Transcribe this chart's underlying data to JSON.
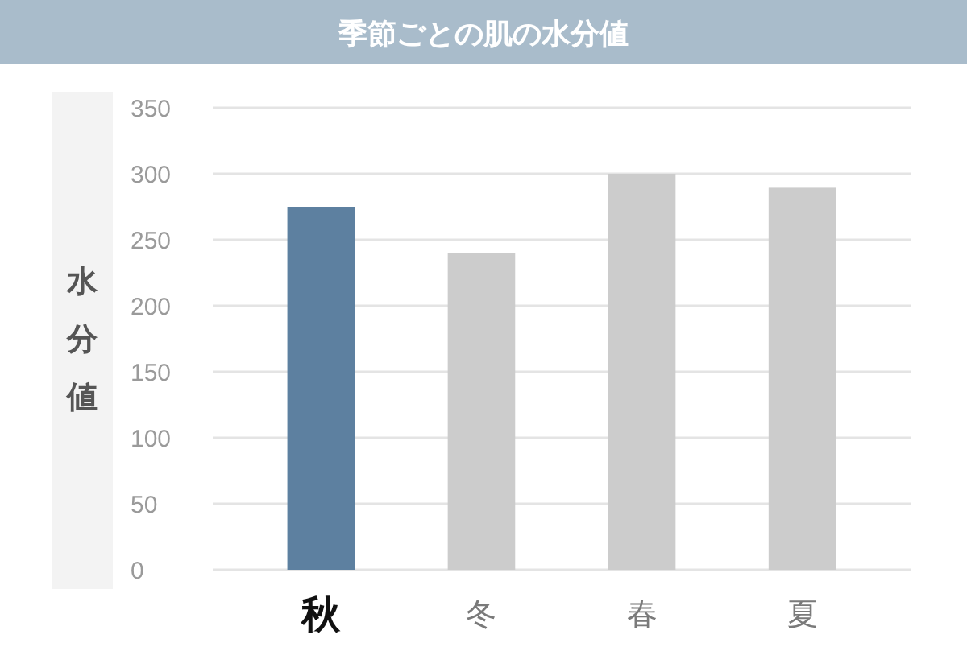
{
  "chart_data": {
    "type": "bar",
    "title": "季節ごとの肌の水分値",
    "ylabel": "水分値",
    "categories": [
      "秋",
      "冬",
      "春",
      "夏"
    ],
    "values": [
      275,
      240,
      300,
      290
    ],
    "colors": [
      "#5d80a0",
      "#cccccc",
      "#cccccc",
      "#cccccc"
    ],
    "ylim": [
      0,
      350
    ],
    "yticks": [
      0,
      50,
      100,
      150,
      200,
      250,
      300,
      350
    ],
    "grid": "y"
  }
}
